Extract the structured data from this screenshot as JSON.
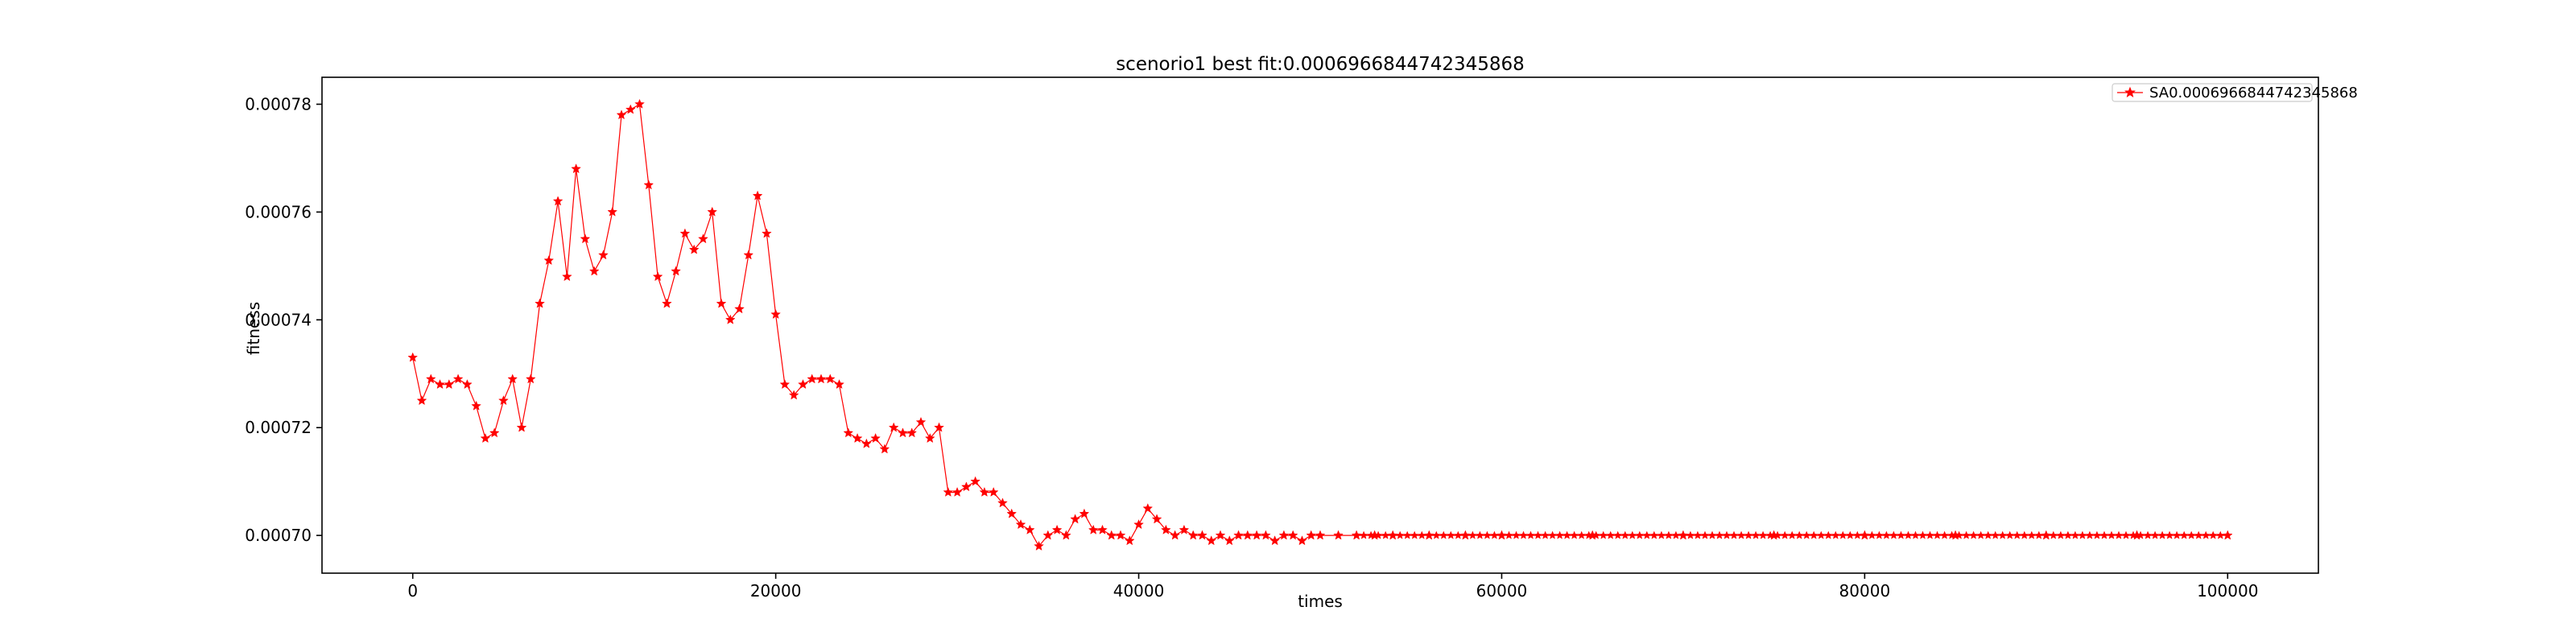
{
  "chart_data": {
    "type": "line",
    "title": "scenorio1 best fit:0.0006966844742345868",
    "xlabel": "times",
    "ylabel": "fitness",
    "xlim": [
      -5000,
      105000
    ],
    "ylim": [
      0.000693,
      0.000785
    ],
    "xticks": [
      0,
      20000,
      40000,
      60000,
      80000,
      100000
    ],
    "xtick_labels": [
      "0",
      "20000",
      "40000",
      "60000",
      "80000",
      "100000"
    ],
    "yticks": [
      0.0007,
      0.00072,
      0.00074,
      0.00076,
      0.00078
    ],
    "ytick_labels": [
      "0.00070",
      "0.00072",
      "0.00074",
      "0.00076",
      "0.00078"
    ],
    "grid": false,
    "legend_position": "top-right",
    "series": [
      {
        "name": "SA0.0006966844742345868",
        "color": "#ff0000",
        "marker": "star",
        "x": [
          0,
          500,
          1000,
          1500,
          2000,
          2500,
          3000,
          3500,
          4000,
          4500,
          5000,
          5500,
          6000,
          6500,
          7000,
          7500,
          8000,
          8500,
          9000,
          9500,
          10000,
          10500,
          11000,
          11500,
          12000,
          12500,
          13000,
          13500,
          14000,
          14500,
          15000,
          15500,
          16000,
          16500,
          17000,
          17500,
          18000,
          18500,
          19000,
          19500,
          20000,
          20500,
          21000,
          21500,
          22000,
          22500,
          23000,
          23500,
          24000,
          24500,
          25000,
          25500,
          26000,
          26500,
          27000,
          27500,
          28000,
          28500,
          29000,
          29500,
          30000,
          30500,
          31000,
          31500,
          32000,
          32500,
          33000,
          33500,
          34000,
          34500,
          35000,
          35500,
          36000,
          36500,
          37000,
          37500,
          38000,
          38500,
          39000,
          39500,
          40000,
          40500,
          41000,
          41500,
          42000,
          42500,
          43000,
          43500,
          44000,
          44500,
          45000,
          45500,
          46000,
          46500,
          47000,
          47500,
          48000,
          48500,
          49000,
          49500,
          50000,
          51000,
          52000,
          53000,
          54000,
          56000,
          58000,
          60000,
          65000,
          70000,
          75000,
          80000,
          85000,
          90000,
          95000,
          100000
        ],
        "y": [
          0.000733,
          0.000725,
          0.000729,
          0.000728,
          0.000728,
          0.000729,
          0.000728,
          0.000724,
          0.000718,
          0.000719,
          0.000725,
          0.000729,
          0.00072,
          0.000729,
          0.000743,
          0.000751,
          0.000762,
          0.000748,
          0.000768,
          0.000755,
          0.000749,
          0.000752,
          0.00076,
          0.000778,
          0.000779,
          0.00078,
          0.000765,
          0.000748,
          0.000743,
          0.000749,
          0.000756,
          0.000753,
          0.000755,
          0.00076,
          0.000743,
          0.00074,
          0.000742,
          0.000752,
          0.000763,
          0.000756,
          0.000741,
          0.000728,
          0.000726,
          0.000728,
          0.000729,
          0.000729,
          0.000729,
          0.000728,
          0.000719,
          0.000718,
          0.000717,
          0.000718,
          0.000716,
          0.00072,
          0.000719,
          0.000719,
          0.000721,
          0.000718,
          0.00072,
          0.000708,
          0.000708,
          0.000709,
          0.00071,
          0.000708,
          0.000708,
          0.000706,
          0.000704,
          0.000702,
          0.000701,
          0.000698,
          0.0007,
          0.000701,
          0.0007,
          0.000703,
          0.000704,
          0.000701,
          0.000701,
          0.0007,
          0.0007,
          0.000699,
          0.000702,
          0.000705,
          0.000703,
          0.000701,
          0.0007,
          0.000701,
          0.0007,
          0.0007,
          0.000699,
          0.0007,
          0.000699,
          0.0007,
          0.0007,
          0.0007,
          0.0007,
          0.000699,
          0.0007,
          0.0007,
          0.000699,
          0.0007,
          0.0007,
          0.0007,
          0.0007,
          0.0007,
          0.0007,
          0.0007,
          0.0007,
          0.0007,
          0.0007,
          0.0007,
          0.0007,
          0.0007,
          0.0007,
          0.0007,
          0.0007,
          0.0007
        ]
      }
    ]
  }
}
